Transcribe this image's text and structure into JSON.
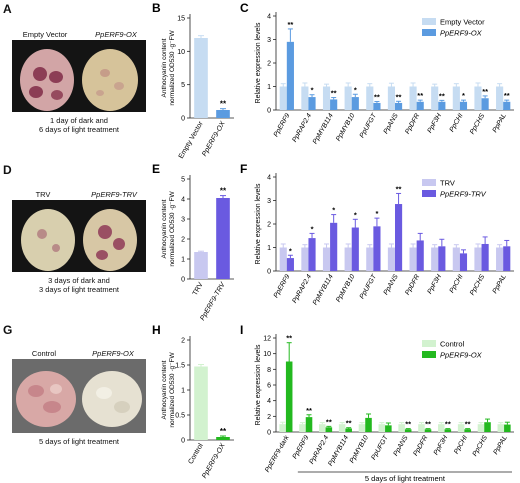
{
  "panels": {
    "A": {
      "letter": "A",
      "left_label": "Empty Vector",
      "right_label": "PpERF9-OX",
      "caption_line1": "1 day of dark and",
      "caption_line2": "6 days of light treatment"
    },
    "D": {
      "letter": "D",
      "left_label": "TRV",
      "right_label": "PpERF9-TRV",
      "caption_line1": "3 days of dark and",
      "caption_line2": "3 days of light treatment"
    },
    "G": {
      "letter": "G",
      "left_label": "Control",
      "right_label": "PpERF9-OX",
      "caption_line1": "5 days of light treatment",
      "caption_line2": ""
    }
  },
  "colors": {
    "ev_light_blue": "#c6dcf2",
    "ox_blue": "#5b9be0",
    "trv_light_purple": "#c8c8f0",
    "trv_purple": "#6a5ae0",
    "ctrl_light_green": "#d2f2cf",
    "ox_green": "#23b91f"
  },
  "chart_data": [
    {
      "id": "B",
      "letter": "B",
      "type": "bar",
      "categories": [
        "Empty Vector",
        "PpERF9-OX"
      ],
      "values": [
        12.0,
        1.2
      ],
      "errors": [
        0.35,
        0.2
      ],
      "ylim": [
        0,
        15
      ],
      "yticks": [
        0,
        5,
        10,
        15
      ],
      "ylabel_line1": "Anthocyanin content",
      "ylabel_line2": "normalized OD530 ·g⁻FW",
      "sig": [
        "",
        "**"
      ],
      "colors": [
        "#c6dcf2",
        "#5b9be0"
      ]
    },
    {
      "id": "E",
      "letter": "E",
      "type": "bar",
      "categories": [
        "TRV",
        "PpERF9-TRV"
      ],
      "values": [
        1.35,
        4.05
      ],
      "errors": [
        0.04,
        0.12
      ],
      "ylim": [
        0,
        5
      ],
      "yticks": [
        0,
        1,
        2,
        3,
        4,
        5
      ],
      "ylabel_line1": "Anthocyanin content",
      "ylabel_line2": "normalized OD530 ·g⁻FW",
      "sig": [
        "",
        "**"
      ],
      "colors": [
        "#c8c8f0",
        "#6a5ae0"
      ]
    },
    {
      "id": "H",
      "letter": "H",
      "type": "bar",
      "categories": [
        "Control",
        "PpERF9-OX"
      ],
      "values": [
        1.47,
        0.06
      ],
      "errors": [
        0.04,
        0.02
      ],
      "ylim": [
        0,
        2.0
      ],
      "yticks": [
        0,
        0.5,
        1.0,
        1.5,
        2.0
      ],
      "ylabel_line1": "Anthocyanin content",
      "ylabel_line2": "normalized OD530 ·g⁻FW",
      "sig": [
        "",
        "**"
      ],
      "colors": [
        "#d2f2cf",
        "#23b91f"
      ]
    },
    {
      "id": "C",
      "letter": "C",
      "type": "bar",
      "ylabel": "Relative expression levels",
      "ylim": [
        0,
        4
      ],
      "yticks": [
        0,
        1,
        2,
        3,
        4
      ],
      "categories": [
        "PpERF9",
        "PpRAP2.4",
        "PpMYB114",
        "PpMYB10",
        "PpUFGT",
        "PpANS",
        "PpDFR",
        "PpF3H",
        "PpCHI",
        "PpCHS",
        "PpPAL"
      ],
      "series": [
        {
          "name": "Empty Vector",
          "color": "#c6dcf2",
          "values": [
            1,
            1,
            1,
            1,
            1,
            1,
            1,
            1,
            1,
            1,
            1
          ],
          "errors": [
            0.12,
            0.15,
            0.1,
            0.15,
            0.12,
            0.14,
            0.15,
            0.1,
            0.12,
            0.15,
            0.12
          ]
        },
        {
          "name": "PpERF9-OX",
          "color": "#5b9be0",
          "values": [
            2.9,
            0.55,
            0.45,
            0.55,
            0.3,
            0.3,
            0.35,
            0.35,
            0.35,
            0.5,
            0.35
          ],
          "errors": [
            0.55,
            0.1,
            0.08,
            0.12,
            0.06,
            0.07,
            0.07,
            0.06,
            0.07,
            0.1,
            0.07
          ]
        }
      ],
      "sig": [
        "**",
        "*",
        "**",
        "*",
        "**",
        "**",
        "**",
        "**",
        "*",
        "**",
        "**"
      ],
      "legend_pos": "top-right"
    },
    {
      "id": "F",
      "letter": "F",
      "type": "bar",
      "ylabel": "Relative expression levels",
      "ylim": [
        0,
        4
      ],
      "yticks": [
        0,
        1,
        2,
        3,
        4
      ],
      "categories": [
        "PpERF9",
        "PpRAP2.4",
        "PpMYB114",
        "PpMYB10",
        "PpUFGT",
        "PpANS",
        "PpDFR",
        "PpF3H",
        "PpCHI",
        "PpCHS",
        "PpPAL"
      ],
      "series": [
        {
          "name": "TRV",
          "color": "#c8c8f0",
          "values": [
            1,
            1,
            1,
            1,
            1,
            1,
            1,
            1,
            1,
            1,
            1
          ],
          "errors": [
            0.15,
            0.12,
            0.15,
            0.15,
            0.12,
            0.15,
            0.15,
            0.12,
            0.12,
            0.15,
            0.12
          ]
        },
        {
          "name": "PpERF9-TRV",
          "color": "#6a5ae0",
          "values": [
            0.55,
            1.4,
            2.05,
            1.85,
            1.9,
            2.85,
            1.3,
            1.05,
            0.75,
            1.15,
            1.05
          ],
          "errors": [
            0.12,
            0.2,
            0.35,
            0.35,
            0.35,
            0.45,
            0.3,
            0.3,
            0.15,
            0.3,
            0.25
          ]
        }
      ],
      "sig": [
        "*",
        "*",
        "*",
        "*",
        "*",
        "**",
        "",
        "",
        "",
        "",
        ""
      ],
      "legend_pos": "top-right"
    },
    {
      "id": "I",
      "letter": "I",
      "type": "bar",
      "ylabel": "Relative expression levels",
      "ylim": [
        0,
        12
      ],
      "yticks": [
        0,
        2,
        4,
        6,
        8,
        10,
        12
      ],
      "categories": [
        "PpERF9-dark",
        "PpERF9",
        "PpRAP2.4",
        "PpMYB114",
        "PpMYB10",
        "PpUFGT",
        "PpANS",
        "PpDFR",
        "PpF3H",
        "PpCHI",
        "PpCHS",
        "PpPAL"
      ],
      "series": [
        {
          "name": "Control",
          "color": "#d2f2cf",
          "values": [
            1,
            1,
            1,
            1,
            1,
            1,
            1,
            1,
            1,
            1,
            1,
            1
          ],
          "errors": [
            0.25,
            0.2,
            0.2,
            0.2,
            0.2,
            0.2,
            0.2,
            0.2,
            0.2,
            0.2,
            0.2,
            0.2
          ]
        },
        {
          "name": "PpERF9-OX",
          "color": "#23b91f",
          "values": [
            9.0,
            1.9,
            0.6,
            0.45,
            1.8,
            0.85,
            0.35,
            0.35,
            0.35,
            0.35,
            1.25,
            0.95
          ],
          "errors": [
            2.4,
            0.3,
            0.12,
            0.1,
            0.5,
            0.3,
            0.08,
            0.08,
            0.08,
            0.08,
            0.4,
            0.3
          ]
        }
      ],
      "sig": [
        "**",
        "**",
        "**",
        "**",
        "",
        "",
        "**",
        "**",
        "**",
        "**",
        "",
        ""
      ],
      "group_label": "5 days of light treatment",
      "legend_pos": "top-right"
    }
  ]
}
